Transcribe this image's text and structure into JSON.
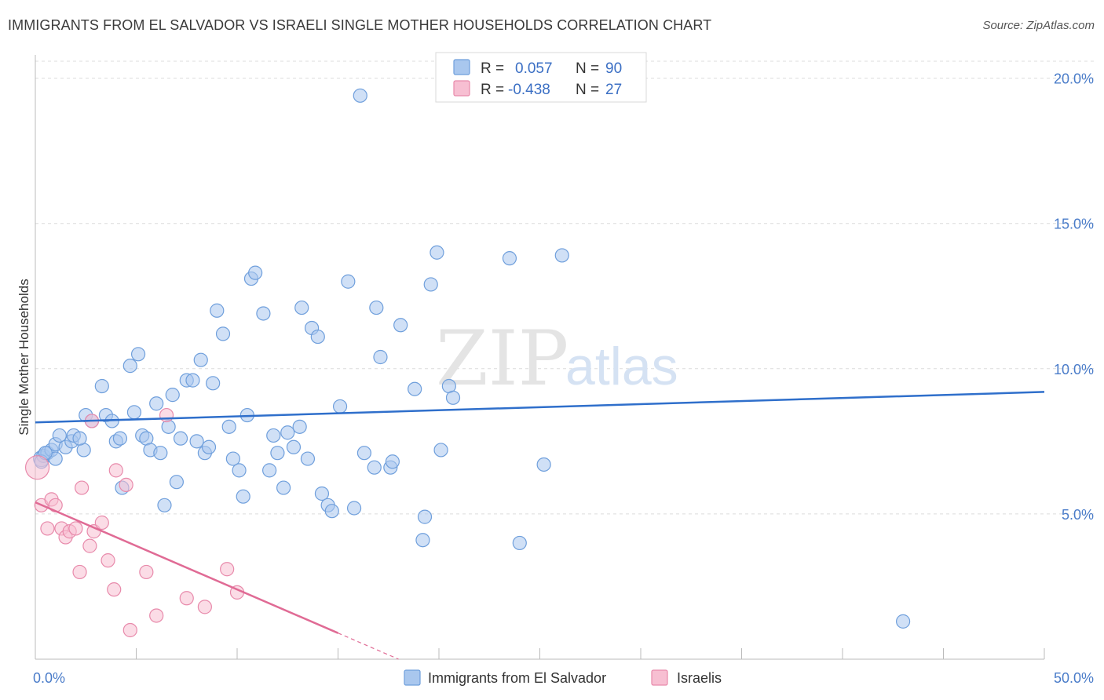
{
  "title": "IMMIGRANTS FROM EL SALVADOR VS ISRAELI SINGLE MOTHER HOUSEHOLDS CORRELATION CHART",
  "source": "Source: ZipAtlas.com",
  "watermark": {
    "zip": "ZIP",
    "atlas": "atlas"
  },
  "legend_top": [
    {
      "r_label": "R =",
      "r_value": "0.057",
      "n_label": "N =",
      "n_value": "90",
      "color": "#a9c7ee",
      "stroke": "#6f9fdc"
    },
    {
      "r_label": "R =",
      "r_value": "-0.438",
      "n_label": "N =",
      "n_value": "27",
      "color": "#f7bfd2",
      "stroke": "#e88aab"
    }
  ],
  "chart_data": {
    "type": "scatter",
    "xlabel": "",
    "ylabel": "Single Mother Households",
    "xlim": [
      0,
      50
    ],
    "ylim": [
      0,
      20.8
    ],
    "x_ticks": [
      0,
      5,
      10,
      15,
      20,
      25,
      30,
      35,
      40,
      45,
      50
    ],
    "x_tick_labels": [
      {
        "value": 0,
        "label": "0.0%"
      },
      {
        "value": 50,
        "label": "50.0%"
      }
    ],
    "y_ticks": [
      {
        "value": 5,
        "label": "5.0%"
      },
      {
        "value": 10,
        "label": "10.0%"
      },
      {
        "value": 15,
        "label": "15.0%"
      },
      {
        "value": 20,
        "label": "20.0%"
      }
    ],
    "grid": true,
    "legend_placement": "bottom-center",
    "series": [
      {
        "name": "Immigrants from El Salvador",
        "color": "#a9c7ee",
        "stroke": "#6f9fdc",
        "line_color": "#2f6fcb",
        "trend": {
          "x": [
            0,
            50
          ],
          "y": [
            8.15,
            9.2
          ]
        },
        "points": [
          [
            0.3,
            6.9
          ],
          [
            0.4,
            7.0
          ],
          [
            0.6,
            7.1
          ],
          [
            0.8,
            7.2
          ],
          [
            1.0,
            6.9
          ],
          [
            1.0,
            7.4
          ],
          [
            1.2,
            7.7
          ],
          [
            1.5,
            7.3
          ],
          [
            1.8,
            7.5
          ],
          [
            1.9,
            7.7
          ],
          [
            2.4,
            7.2
          ],
          [
            2.5,
            8.4
          ],
          [
            2.8,
            8.2
          ],
          [
            3.3,
            9.4
          ],
          [
            3.5,
            8.4
          ],
          [
            3.8,
            8.2
          ],
          [
            4.0,
            7.5
          ],
          [
            4.2,
            7.6
          ],
          [
            4.3,
            5.9
          ],
          [
            4.7,
            10.1
          ],
          [
            4.9,
            8.5
          ],
          [
            5.1,
            10.5
          ],
          [
            5.3,
            7.7
          ],
          [
            5.5,
            7.6
          ],
          [
            5.7,
            7.2
          ],
          [
            6.0,
            8.8
          ],
          [
            6.2,
            7.1
          ],
          [
            6.4,
            5.3
          ],
          [
            6.6,
            8.0
          ],
          [
            6.8,
            9.1
          ],
          [
            7.0,
            6.1
          ],
          [
            7.2,
            7.6
          ],
          [
            7.5,
            9.6
          ],
          [
            7.8,
            9.6
          ],
          [
            8.0,
            7.5
          ],
          [
            8.2,
            10.3
          ],
          [
            8.4,
            7.1
          ],
          [
            8.6,
            7.3
          ],
          [
            8.8,
            9.5
          ],
          [
            9.0,
            12.0
          ],
          [
            9.3,
            11.2
          ],
          [
            9.6,
            8.0
          ],
          [
            9.8,
            6.9
          ],
          [
            10.1,
            6.5
          ],
          [
            10.3,
            5.6
          ],
          [
            10.5,
            8.4
          ],
          [
            10.7,
            13.1
          ],
          [
            10.9,
            13.3
          ],
          [
            11.3,
            11.9
          ],
          [
            11.6,
            6.5
          ],
          [
            11.8,
            7.7
          ],
          [
            12.0,
            7.1
          ],
          [
            12.3,
            5.9
          ],
          [
            12.5,
            7.8
          ],
          [
            12.8,
            7.3
          ],
          [
            13.1,
            8.0
          ],
          [
            13.2,
            12.1
          ],
          [
            13.5,
            6.9
          ],
          [
            13.7,
            11.4
          ],
          [
            14.0,
            11.1
          ],
          [
            14.2,
            5.7
          ],
          [
            14.5,
            5.3
          ],
          [
            14.7,
            5.1
          ],
          [
            15.1,
            8.7
          ],
          [
            15.5,
            13.0
          ],
          [
            15.8,
            5.2
          ],
          [
            16.1,
            19.4
          ],
          [
            16.3,
            7.1
          ],
          [
            16.8,
            6.6
          ],
          [
            16.9,
            12.1
          ],
          [
            17.1,
            10.4
          ],
          [
            17.6,
            6.6
          ],
          [
            17.7,
            6.8
          ],
          [
            18.1,
            11.5
          ],
          [
            18.8,
            9.3
          ],
          [
            19.2,
            4.1
          ],
          [
            19.3,
            4.9
          ],
          [
            19.6,
            12.9
          ],
          [
            19.9,
            14.0
          ],
          [
            20.1,
            7.2
          ],
          [
            20.5,
            9.4
          ],
          [
            20.7,
            9.0
          ],
          [
            23.5,
            13.8
          ],
          [
            24.0,
            4.0
          ],
          [
            25.2,
            6.7
          ],
          [
            26.1,
            13.9
          ],
          [
            43.0,
            1.3
          ],
          [
            0.3,
            6.8
          ],
          [
            0.5,
            7.1
          ],
          [
            2.2,
            7.6
          ]
        ]
      },
      {
        "name": "Israelis",
        "color": "#f7bfd2",
        "stroke": "#e88aab",
        "line_color": "#e06b95",
        "trend": {
          "x": [
            0,
            15.0
          ],
          "y": [
            5.4,
            0.9
          ]
        },
        "trend_dashed": {
          "x": [
            15.0,
            18.0
          ],
          "y": [
            0.9,
            0.0
          ]
        },
        "points": [
          [
            0.1,
            6.6
          ],
          [
            0.3,
            5.3
          ],
          [
            0.6,
            4.5
          ],
          [
            0.8,
            5.5
          ],
          [
            1.0,
            5.3
          ],
          [
            1.3,
            4.5
          ],
          [
            1.5,
            4.2
          ],
          [
            1.7,
            4.4
          ],
          [
            2.0,
            4.5
          ],
          [
            2.2,
            3.0
          ],
          [
            2.3,
            5.9
          ],
          [
            2.7,
            3.9
          ],
          [
            2.8,
            8.2
          ],
          [
            2.9,
            4.4
          ],
          [
            3.3,
            4.7
          ],
          [
            3.6,
            3.4
          ],
          [
            3.9,
            2.4
          ],
          [
            4.0,
            6.5
          ],
          [
            4.5,
            6.0
          ],
          [
            4.7,
            1.0
          ],
          [
            5.5,
            3.0
          ],
          [
            6.0,
            1.5
          ],
          [
            6.5,
            8.4
          ],
          [
            7.5,
            2.1
          ],
          [
            8.4,
            1.8
          ],
          [
            9.5,
            3.1
          ],
          [
            10.0,
            2.3
          ]
        ]
      }
    ]
  }
}
